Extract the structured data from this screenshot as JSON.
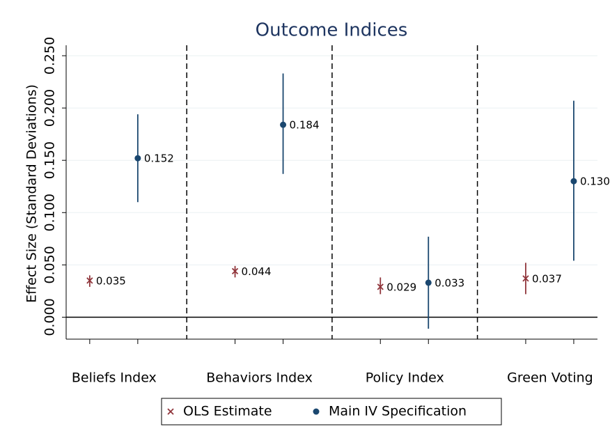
{
  "chart_data": {
    "type": "errorbar",
    "title": "Outcome Indices",
    "y_label": "Effect Size (Standard Deviations)",
    "categories": [
      "Beliefs Index",
      "Behaviors Index",
      "Policy Index",
      "Green Voting"
    ],
    "series": [
      {
        "name": "OLS Estimate",
        "color": "#90353b",
        "marker": "x",
        "values": [
          0.035,
          0.044,
          0.029,
          0.037
        ],
        "ci_low": [
          0.029,
          0.038,
          0.022,
          0.022
        ],
        "ci_high": [
          0.04,
          0.049,
          0.038,
          0.052
        ]
      },
      {
        "name": "Main IV Specification",
        "color": "#1a476f",
        "marker": "circle",
        "values": [
          0.152,
          0.184,
          0.033,
          0.13
        ],
        "value_labels": [
          "0.152",
          "0.184",
          "0.033",
          "0.130"
        ],
        "ci_low": [
          0.11,
          0.137,
          -0.011,
          0.054
        ],
        "ci_high": [
          0.194,
          0.233,
          0.077,
          0.207
        ]
      }
    ],
    "ylim": [
      -0.021,
      0.26
    ],
    "yticks": [
      {
        "value": 0,
        "label": "0.000"
      },
      {
        "value": 0.05,
        "label": "0.050"
      },
      {
        "value": 0.1,
        "label": "0.100"
      },
      {
        "value": 0.15,
        "label": "0.150"
      },
      {
        "value": 0.2,
        "label": "0.200"
      },
      {
        "value": 0.25,
        "label": "0.250"
      }
    ],
    "grid": true,
    "legend": "bottom"
  }
}
